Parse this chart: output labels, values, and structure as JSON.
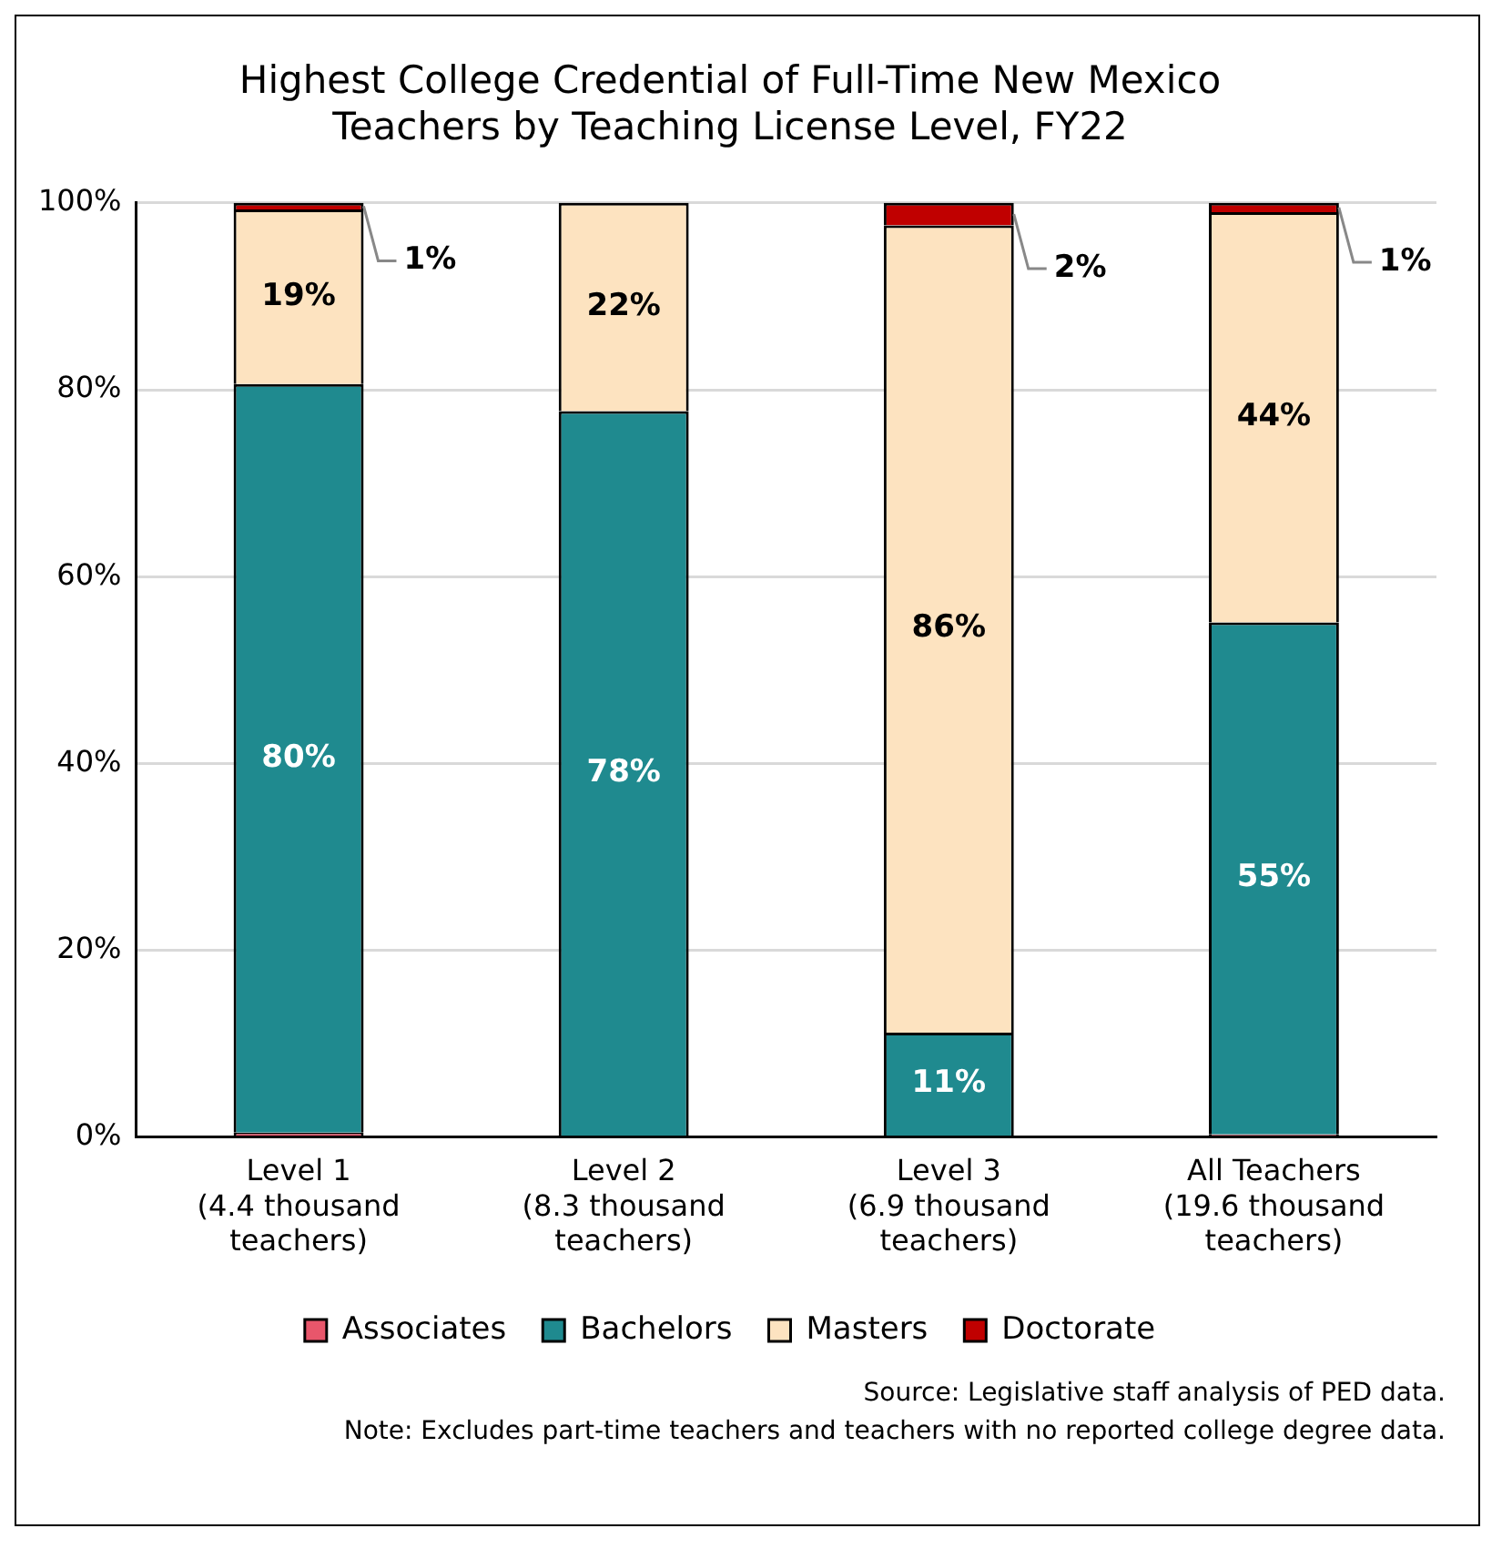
{
  "chart_data": {
    "type": "bar",
    "title": "Highest College Credential of Full-Time New Mexico\nTeachers by Teaching License Level, FY22",
    "categories": [
      "Level 1\n(4.4 thousand\nteachers)",
      "Level 2\n(8.3 thousand\nteachers)",
      "Level 3\n(6.9 thousand\nteachers)",
      "All Teachers\n(19.6 thousand\nteachers)"
    ],
    "stacked": true,
    "series": [
      {
        "name": "Associates",
        "color": "#e8566b",
        "values": [
          0.5,
          null,
          null,
          0.3
        ],
        "value_labels": [
          null,
          null,
          null,
          null
        ]
      },
      {
        "name": "Bachelors",
        "color": "#1f8a8f",
        "values": [
          80.1,
          77.7,
          11.2,
          54.8
        ],
        "value_labels": [
          "80%",
          "78%",
          "11%",
          "55%"
        ]
      },
      {
        "name": "Masters",
        "color": "#fde3c0",
        "values": [
          18.7,
          22.3,
          86.4,
          43.9
        ],
        "value_labels": [
          "19%",
          "22%",
          "86%",
          "44%"
        ]
      },
      {
        "name": "Doctorate",
        "color": "#c00000",
        "values": [
          0.7,
          null,
          2.4,
          1.0
        ],
        "value_labels": [
          "1%",
          null,
          "2%",
          "1%"
        ]
      }
    ],
    "ylim": [
      0,
      100
    ],
    "yticks": [
      {
        "value": 0,
        "label": "0%"
      },
      {
        "value": 20,
        "label": "20%"
      },
      {
        "value": 40,
        "label": "40%"
      },
      {
        "value": 60,
        "label": "60%"
      },
      {
        "value": 80,
        "label": "80%"
      },
      {
        "value": 100,
        "label": "100%"
      }
    ],
    "grid": "y",
    "legend": "bottom",
    "annotations": [
      "Source: Legislative staff analysis of PED data.",
      "Note: Excludes part-time teachers and teachers with no reported college degree data."
    ]
  }
}
